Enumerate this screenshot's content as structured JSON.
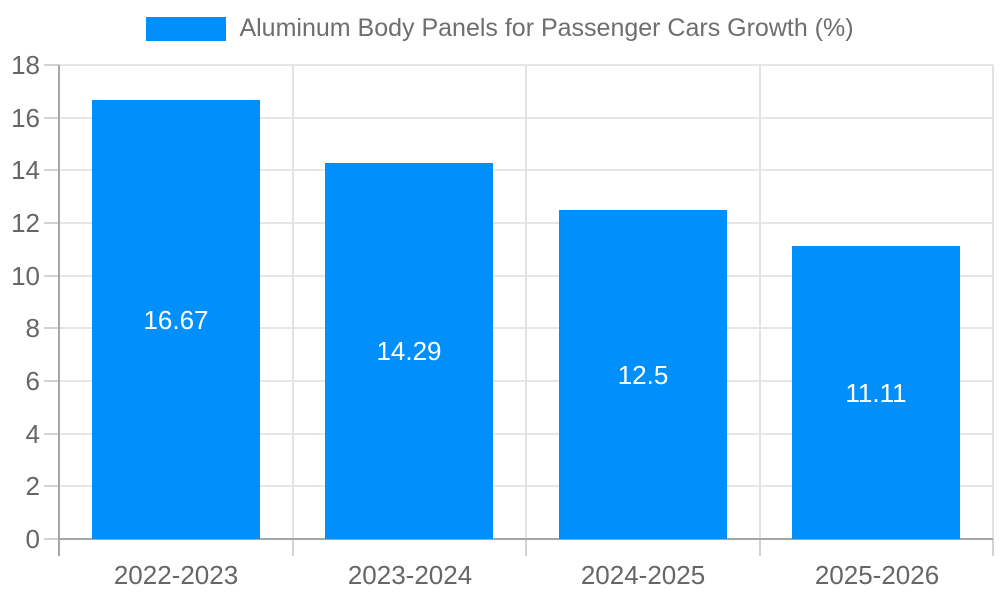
{
  "legend": {
    "label": "Aluminum Body Panels for Passenger Cars Growth (%)",
    "swatch_color": "#008FFB"
  },
  "chart_data": {
    "type": "bar",
    "title": "Aluminum Body Panels for Passenger Cars Growth (%)",
    "categories": [
      "2022-2023",
      "2023-2024",
      "2024-2025",
      "2025-2026"
    ],
    "values": [
      16.67,
      14.29,
      12.5,
      11.11
    ],
    "value_labels": [
      "16.67",
      "14.29",
      "12.5",
      "11.11"
    ],
    "xlabel": "",
    "ylabel": "",
    "ylim": [
      0,
      18
    ],
    "yticks": [
      0,
      2,
      4,
      6,
      8,
      10,
      12,
      14,
      16,
      18
    ],
    "grid": true,
    "legend_position": "top",
    "colors": {
      "bar": "#008FFB",
      "bar_value_label": "#ffffff",
      "grid_line": "#e6e6e6",
      "separator_line": "#e2e2e2",
      "axis_line": "#a6a6a6",
      "tick_mark": "#d2d2d2",
      "axis_text": "#666666",
      "legend_text": "#6e6e6e"
    }
  }
}
